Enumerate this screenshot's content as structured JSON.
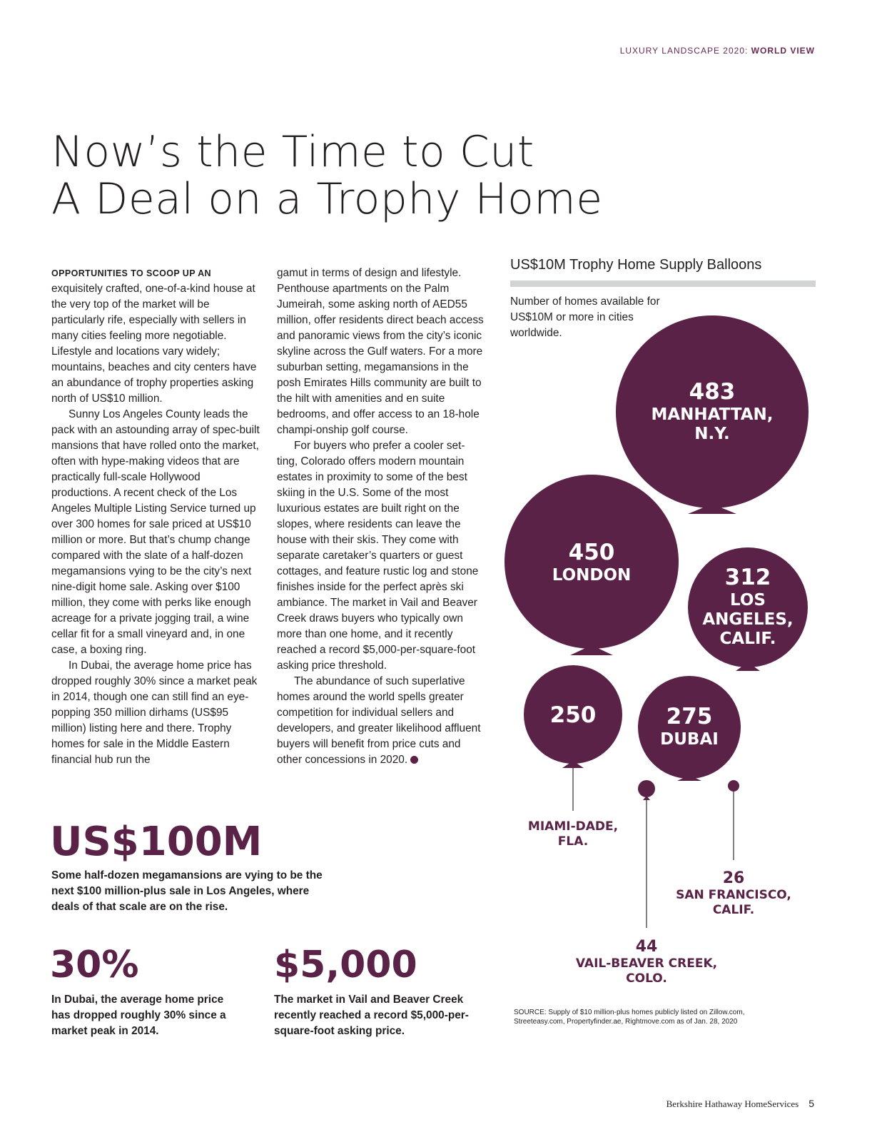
{
  "header": {
    "section": "LUXURY LANDSCAPE 2020: ",
    "subsection": "WORLD VIEW"
  },
  "title": {
    "line1": "Now’s the Time to Cut",
    "line2": "A Deal on a Trophy Home"
  },
  "article": {
    "lead": "OPPORTUNITIES TO SCOOP UP AN",
    "col1_p1": " exquisitely crafted, one-of-a-kind house at the very top of the market will be particularly rife, especially with sellers in many cities feeling more negotiable. Lifestyle and locations vary widely; mountains, beaches and city centers have an abundance of trophy properties asking north of US$10 million.",
    "col1_p2": "Sunny Los Angeles County leads the pack with an astounding array of spec-built mansions that have rolled onto the market, often with hype-making videos that are practically full-scale Hollywood productions. A recent check of the Los Angeles Multiple Listing Service turned up over 300 homes for sale priced at US$10 million or more. But that’s chump change compared with the slate of a half-dozen megamansions vying to be the city’s next nine-digit home sale. Asking over $100 million, they come with perks like enough acreage for a private jogging trail, a wine cellar fit for a small vineyard and, in one case, a boxing ring.",
    "col1_p3": "In Dubai, the average home price has dropped roughly 30% since a market peak in 2014, though one can still find an eye-popping 350 million dirhams (US$95 million) listing here and there. Trophy homes for sale in the Middle Eastern financial hub run the",
    "col2_p1": "gamut in terms of design and lifestyle. Penthouse apartments on the Palm Jumeirah, some asking north of AED55 million, offer residents direct beach access and panoramic views from the city’s iconic skyline across the Gulf waters. For a more suburban setting, megamansions in the posh Emirates Hills community are built to the hilt with amenities and en suite bedrooms, and offer access to an 18-hole champi-onship golf course.",
    "col2_p2": "For buyers who prefer a cooler set-ting, Colorado offers modern mountain estates in proximity to some of the best skiing in the U.S. Some of the most luxurious estates are built right on the slopes, where residents can leave the house with their skis. They come with separate caretaker’s quarters or guest cottages, and feature rustic log and stone finishes inside for the perfect après ski ambiance. The market in Vail and Beaver Creek draws buyers who typically own more than one home, and it recently reached a record $5,000-per-square-foot asking price threshold.",
    "col2_p3": "The abundance of such superlative homes around the world spells greater competition for individual sellers and developers, and greater likelihood affluent buyers will benefit from price cuts and other concessions in 2020."
  },
  "chart": {
    "title": "US$10M Trophy Home Supply Balloons",
    "subtitle": "Number of homes available for US$10M or more in cities worldwide.",
    "source": "SOURCE: Supply of $10 million-plus homes publicly listed on Zillow.com, Streeteasy.com, Propertyfinder.ae, Rightmove.com as of Jan. 28, 2020",
    "balloon_color": "#5a2246",
    "labels": {
      "manhattan_num": "483",
      "manhattan_city1": "MANHATTAN,",
      "manhattan_city2": "N.Y.",
      "london_num": "450",
      "london_city": "LONDON",
      "la_num": "312",
      "la_city1": "LOS",
      "la_city2": "ANGELES,",
      "la_city3": "CALIF.",
      "miami_num": "250",
      "miami_city1": "MIAMI-DADE,",
      "miami_city2": "FLA.",
      "dubai_num": "275",
      "dubai_city": "DUBAI",
      "sf_num": "26",
      "sf_city1": "SAN FRANCISCO,",
      "sf_city2": "CALIF.",
      "vail_num": "44",
      "vail_city1": "VAIL-BEAVER CREEK,",
      "vail_city2": "COLO."
    }
  },
  "chart_data": {
    "type": "bubble",
    "title": "US$10M Trophy Home Supply Balloons",
    "subtitle": "Number of homes available for US$10M or more in cities worldwide.",
    "categories": [
      "MANHATTAN, N.Y.",
      "LONDON",
      "LOS ANGELES, CALIF.",
      "MIAMI-DADE, FLA.",
      "DUBAI",
      "SAN FRANCISCO, CALIF.",
      "VAIL-BEAVER CREEK, COLO."
    ],
    "values": [
      483,
      450,
      312,
      250,
      275,
      26,
      44
    ]
  },
  "stats": {
    "s1_value": "US$100M",
    "s1_desc": "Some half-dozen megamansions are vying to be the next $100 million-plus sale in Los Angeles, where deals of that scale are on the rise.",
    "s2_value": "30%",
    "s2_desc": "In Dubai, the average home price has dropped roughly 30% since a market peak in 2014.",
    "s3_value": "$5,000",
    "s3_desc": "The market in Vail and Beaver Creek recently reached a record $5,000-per-square-foot asking price."
  },
  "footer": {
    "brand": "Berkshire Hathaway HomeServices",
    "page": "5"
  }
}
